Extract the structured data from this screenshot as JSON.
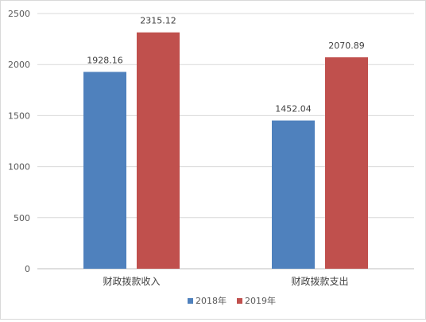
{
  "chart_data": {
    "type": "bar",
    "title": "",
    "xlabel": "",
    "ylabel": "",
    "ylim": [
      0,
      2500
    ],
    "yticks": [
      0,
      500,
      1000,
      1500,
      2000,
      2500
    ],
    "grid": true,
    "legend_position": "bottom",
    "categories": [
      "财政拨款收入",
      "财政拨款支出"
    ],
    "series": [
      {
        "name": "2018年",
        "color": "#4f81bd",
        "values": [
          1928.16,
          1452.04
        ],
        "labels": [
          "1928.16",
          "1452.04"
        ]
      },
      {
        "name": "2019年",
        "color": "#c0504d",
        "values": [
          2315.12,
          2070.89
        ],
        "labels": [
          "2315.12",
          "2070.89"
        ]
      }
    ]
  }
}
